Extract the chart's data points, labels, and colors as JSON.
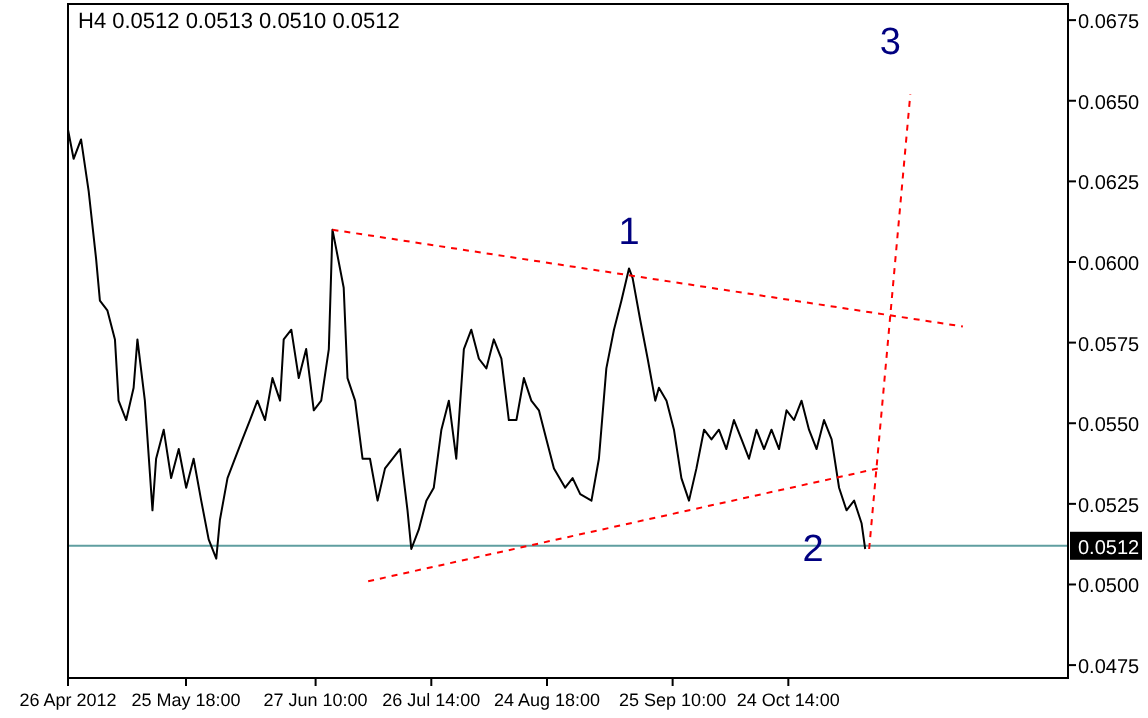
{
  "chart_data": {
    "type": "line",
    "title": "H4  0.0512 0.0513 0.0510 0.0512",
    "xlim": [
      "2012-04-26",
      "2013-01-03T02:00"
    ],
    "ylim": [
      0.0471,
      0.068
    ],
    "xticks": [
      {
        "value": "2012-04-26",
        "label": "26 Apr 2012"
      },
      {
        "value": "2012-05-25T18:00",
        "label": "25 May 18:00"
      },
      {
        "value": "2012-06-27T10:00",
        "label": "27 Jun 10:00"
      },
      {
        "value": "2012-07-26T14:00",
        "label": "26 Jul 14:00"
      },
      {
        "value": "2012-08-24T18:00",
        "label": "24 Aug 18:00"
      },
      {
        "value": "2012-09-25T10:00",
        "label": "25 Sep 10:00"
      },
      {
        "value": "2012-10-24T14:00",
        "label": "24 Oct 14:00"
      }
    ],
    "yticks": [
      0.0475,
      {
        "value": 0.05,
        "label": "0.0500"
      },
      0.0525,
      {
        "value": 0.055,
        "label": "0.0550"
      },
      0.0575,
      {
        "value": 0.06,
        "label": "0.0600"
      },
      0.0625,
      {
        "value": 0.065,
        "label": "0.0650"
      },
      0.0675
    ],
    "grid": false,
    "series": [
      {
        "color": "#000000",
        "x": [
          "2012-04-26T00:00",
          "2012-04-27T10:00",
          "2012-04-29T07:00",
          "2012-05-01T05:00",
          "2012-05-03T02:00",
          "2012-05-04T01:00",
          "2012-05-05T22:00",
          "2012-05-07T20:00",
          "2012-05-08T18:00",
          "2012-05-10T16:00",
          "2012-05-12T13:00",
          "2012-05-13T12:00",
          "2012-05-15T09:00",
          "2012-05-17T07:00",
          "2012-05-18T05:00",
          "2012-05-20T03:00",
          "2012-05-22T00:00",
          "2012-05-23T22:00",
          "2012-05-25T19:00",
          "2012-05-27T16:00",
          "2012-05-29T14:00",
          "2012-05-31T11:00",
          "2012-06-02T09:00",
          "2012-06-03T07:00",
          "2012-06-05T05:00",
          "2012-06-07T02:00",
          "2012-06-08T23:00",
          "2012-06-10T21:00",
          "2012-06-12T18:00",
          "2012-06-14T16:00",
          "2012-06-16T13:00",
          "2012-06-18T11:00",
          "2012-06-19T09:00",
          "2012-06-21T07:00",
          "2012-06-23T04:00",
          "2012-06-25T01:00",
          "2012-06-26T23:00",
          "2012-06-28T20:00",
          "2012-06-30T18:00",
          "2012-07-01T16:00",
          "2012-07-02T15:00",
          "2012-07-04T12:00",
          "2012-07-05T11:00",
          "2012-07-07T09:00",
          "2012-07-09T06:00",
          "2012-07-11T03:00",
          "2012-07-13T01:00",
          "2012-07-14T22:00",
          "2012-07-16T20:00",
          "2012-07-18T17:00",
          "2012-07-20T14:00",
          "2012-07-21T13:00",
          "2012-07-23T10:00",
          "2012-07-25T08:00",
          "2012-07-27T05:00",
          "2012-07-29T03:00",
          "2012-07-31T00:00",
          "2012-08-01T21:00",
          "2012-08-03T19:00",
          "2012-08-05T16:00",
          "2012-08-07T14:00",
          "2012-08-09T11:00",
          "2012-08-11T08:00",
          "2012-08-13T06:00",
          "2012-08-15T03:00",
          "2012-08-17T01:00",
          "2012-08-18T22:00",
          "2012-08-20T19:00",
          "2012-08-22T17:00",
          "2012-08-24T14:00",
          "2012-08-26T12:00",
          "2012-08-29T08:00",
          "2012-08-31T05:00",
          "2012-09-02T03:00",
          "2012-09-04T23:00",
          "2012-09-06T20:00",
          "2012-09-08T17:00",
          "2012-09-10T15:00",
          "2012-09-12T12:00",
          "2012-09-14T10:00",
          "2012-09-15T08:00",
          "2012-09-17T06:00",
          "2012-09-19T03:00",
          "2012-09-21T01:00",
          "2012-09-21T23:00",
          "2012-09-23T21:00",
          "2012-09-25T18:00",
          "2012-09-27T15:00",
          "2012-09-29T13:00",
          "2012-10-01T10:00",
          "2012-10-03T08:00",
          "2012-10-05T05:00",
          "2012-10-07T02:00",
          "2012-10-08T23:00",
          "2012-10-10T21:00",
          "2012-10-12T19:00",
          "2012-10-14T16:00",
          "2012-10-16T13:00",
          "2012-10-18T11:00",
          "2012-10-20T08:00",
          "2012-10-22T06:00",
          "2012-10-24T03:00",
          "2012-10-26T00:00",
          "2012-10-27T22:00",
          "2012-10-29T19:00",
          "2012-10-31T17:00",
          "2012-11-02T14:00",
          "2012-11-04T12:00",
          "2012-11-06T09:00",
          "2012-11-08T06:00",
          "2012-11-10T04:00",
          "2012-11-12T01:00",
          "2012-11-12T23:00"
        ],
        "values": [
          0.0641,
          0.0632,
          0.0638,
          0.0622,
          0.0601,
          0.0588,
          0.0585,
          0.0576,
          0.0557,
          0.0551,
          0.0561,
          0.0576,
          0.0557,
          0.0523,
          0.0539,
          0.0548,
          0.0533,
          0.0542,
          0.053,
          0.0539,
          0.0526,
          0.0514,
          0.0508,
          0.052,
          0.0533,
          0.0539,
          0.0545,
          0.0551,
          0.0557,
          0.0551,
          0.0564,
          0.0557,
          0.0576,
          0.0579,
          0.0564,
          0.0573,
          0.0554,
          0.0557,
          0.0573,
          0.061,
          0.0604,
          0.0592,
          0.0564,
          0.0557,
          0.0539,
          0.0539,
          0.0526,
          0.0536,
          0.0539,
          0.0542,
          0.0523,
          0.0511,
          0.0517,
          0.0526,
          0.053,
          0.0548,
          0.0557,
          0.0539,
          0.0573,
          0.0579,
          0.057,
          0.0567,
          0.0576,
          0.057,
          0.0551,
          0.0551,
          0.0564,
          0.0557,
          0.0554,
          0.0545,
          0.0536,
          0.053,
          0.0533,
          0.0528,
          0.0526,
          0.0539,
          0.0567,
          0.0579,
          0.0588,
          0.0598,
          0.0595,
          0.0582,
          0.057,
          0.0557,
          0.0561,
          0.0557,
          0.0548,
          0.0533,
          0.0526,
          0.0536,
          0.0548,
          0.0545,
          0.0548,
          0.0542,
          0.0551,
          0.0545,
          0.0539,
          0.0548,
          0.0542,
          0.0548,
          0.0542,
          0.0554,
          0.0551,
          0.0557,
          0.0548,
          0.0542,
          0.0551,
          0.0545,
          0.053,
          0.0523,
          0.0526,
          0.0519,
          0.0511
        ],
        "line_style": "solid"
      },
      {
        "color": "#ff0000",
        "x": [
          "2012-07-01T16:00",
          "2012-12-07T14:00"
        ],
        "values": [
          0.061,
          0.058
        ],
        "line_style": "dashed"
      },
      {
        "color": "#ff0000",
        "x": [
          "2012-07-10T16:00",
          "2012-11-16T07:00"
        ],
        "values": [
          0.0501,
          0.0536
        ],
        "line_style": "dashed"
      },
      {
        "color": "#ff0000",
        "x": [
          "2012-11-13T23:00",
          "2012-11-24T08:00"
        ],
        "values": [
          0.0511,
          0.0652
        ],
        "line_style": "dashed"
      }
    ],
    "ref_lines": [
      {
        "axis": "y",
        "value": 0.0512,
        "label": "0.0512",
        "color": "#5f9ea0"
      }
    ],
    "annotations": [
      {
        "text": "1",
        "x": "2012-09-14T10:00",
        "y": 0.0598
      },
      {
        "text": "2",
        "x": "2012-11-12T23:00",
        "y": 0.0511
      },
      {
        "text": "3",
        "x": "2012-11-24T08:00",
        "y": 0.0652
      }
    ]
  }
}
